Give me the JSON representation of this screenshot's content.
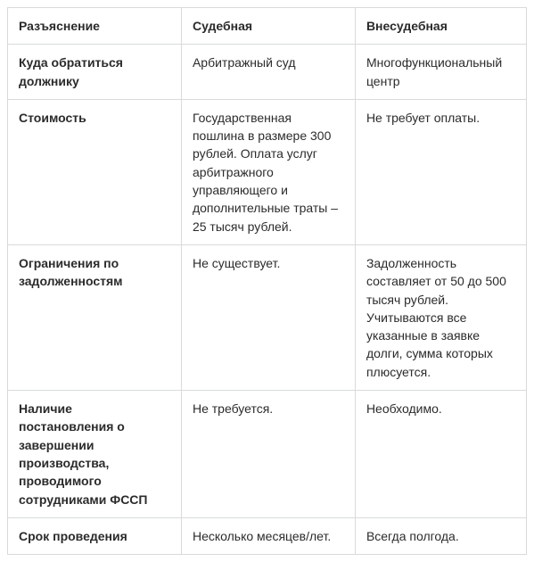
{
  "table": {
    "columns": [
      "Разъяснение",
      "Судебная",
      "Внесудебная"
    ],
    "rows": [
      {
        "label": "Куда обратиться должнику",
        "col1": "Арбитражный суд",
        "col2": "Многофункциональный центр"
      },
      {
        "label": "Стоимость",
        "col1": "Государственная пошлина в размере 300 рублей. Оплата услуг арбитражного управляющего и дополнительные траты – 25 тысяч рублей.",
        "col2": "Не требует оплаты."
      },
      {
        "label": "Ограничения по задолженностям",
        "col1": "Не существует.",
        "col2": "Задолженность составляет от 50 до 500 тысяч рублей. Учитываются все указанные в заявке долги, сумма которых плюсуется."
      },
      {
        "label": "Наличие постановления о завершении производства, проводимого сотрудниками ФССП",
        "col1": "Не требуется.",
        "col2": "Необходимо."
      },
      {
        "label": "Срок проведения",
        "col1": "Несколько месяцев/лет.",
        "col2": "Всегда полгода."
      }
    ],
    "border_color": "#d8dadc",
    "text_color": "#2b2b2b",
    "font_size": 14,
    "header_font_weight": 700
  }
}
